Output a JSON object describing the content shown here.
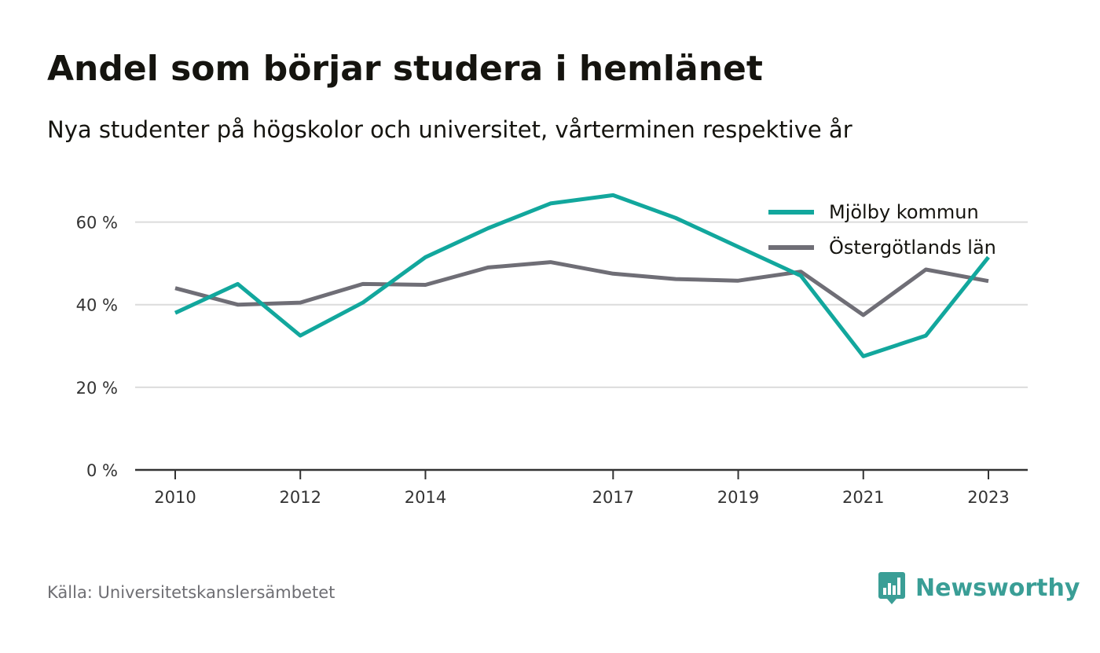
{
  "title": "Andel som börjar studera i hemlänet",
  "subtitle": "Nya studenter på högskolor och universitet, vårterminen respektive år",
  "source": "Källa: Universitetskanslersämbetet",
  "brand": "Newsworthy",
  "colors": {
    "series1": "#12a79d",
    "series2": "#6f6e76",
    "grid": "#dcdcdc",
    "axis": "#333333",
    "brand": "#3a9e96"
  },
  "chart_data": {
    "type": "line",
    "title": "Andel som börjar studera i hemlänet",
    "subtitle": "Nya studenter på högskolor och universitet, vårterminen respektive år",
    "xlabel": "",
    "ylabel": "",
    "x": [
      2010,
      2011,
      2012,
      2013,
      2014,
      2015,
      2016,
      2017,
      2018,
      2019,
      2020,
      2021,
      2022,
      2023
    ],
    "xticks": [
      2010,
      2012,
      2014,
      2017,
      2019,
      2021,
      2023
    ],
    "yticks": [
      0,
      20,
      40,
      60
    ],
    "ytick_labels": [
      "0 %",
      "20 %",
      "40 %",
      "60 %"
    ],
    "xlim": [
      2010,
      2023
    ],
    "ylim": [
      0,
      70
    ],
    "grid": true,
    "legend": "top-right",
    "series": [
      {
        "name": "Mjölby kommun",
        "values": [
          38,
          45,
          32.5,
          40.5,
          51.5,
          58.5,
          64.5,
          66.5,
          61,
          54,
          47,
          27.5,
          32.5,
          51.5
        ]
      },
      {
        "name": "Östergötlands län",
        "values": [
          44,
          40,
          40.5,
          45,
          44.8,
          49,
          50.3,
          47.5,
          46.2,
          45.8,
          48,
          37.5,
          48.5,
          45.7
        ]
      }
    ]
  }
}
